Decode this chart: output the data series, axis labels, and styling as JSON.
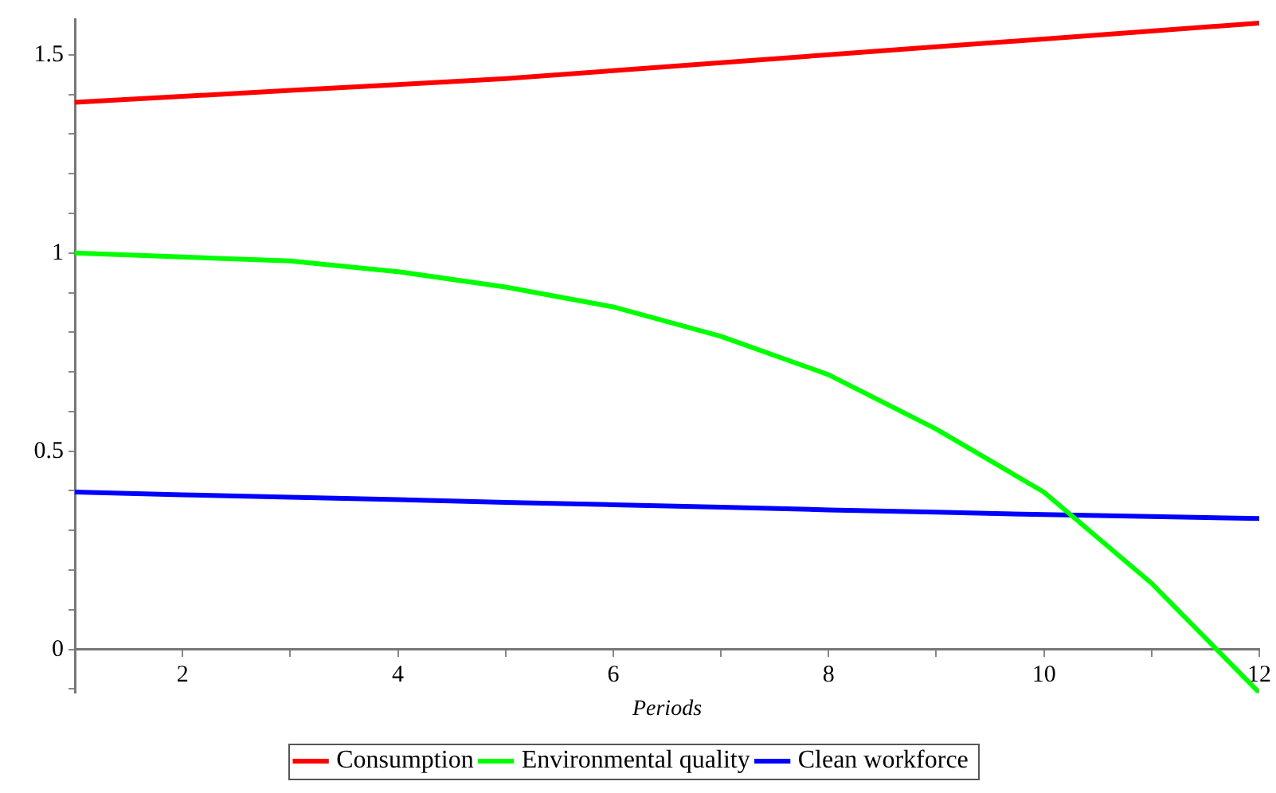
{
  "chart_data": {
    "type": "line",
    "xlabel": "Periods",
    "x": [
      1,
      2,
      3,
      4,
      5,
      6,
      7,
      8,
      9,
      10,
      11,
      12
    ],
    "series": [
      {
        "name": "Consumption",
        "color": "#ff0000",
        "values": [
          1.38,
          1.395,
          1.41,
          1.425,
          1.44,
          1.46,
          1.48,
          1.5,
          1.52,
          1.54,
          1.56,
          1.58
        ]
      },
      {
        "name": "Environmental quality",
        "color": "#00ff00",
        "values": [
          1.0,
          0.99,
          0.98,
          0.953,
          0.914,
          0.864,
          0.79,
          0.693,
          0.556,
          0.397,
          0.167,
          -0.109
        ]
      },
      {
        "name": "Clean workforce",
        "color": "#0000ff",
        "values": [
          0.397,
          0.39,
          0.384,
          0.378,
          0.371,
          0.365,
          0.359,
          0.352,
          0.346,
          0.34,
          0.335,
          0.33
        ]
      }
    ],
    "xlim": [
      1,
      12
    ],
    "xticks": [
      2,
      {
        "value": 3,
        "label": null
      },
      4,
      {
        "value": 5,
        "label": null
      },
      6,
      {
        "value": 7,
        "label": null
      },
      8,
      {
        "value": 9,
        "label": null
      },
      10,
      {
        "value": 11,
        "label": null
      },
      12
    ],
    "ylim": [
      -0.11,
      1.59
    ],
    "yticks": [
      {
        "value": -0.1,
        "label": null
      },
      0,
      {
        "value": 0.1,
        "label": null
      },
      {
        "value": 0.2,
        "label": null
      },
      {
        "value": 0.3,
        "label": null
      },
      {
        "value": 0.4,
        "label": null
      },
      0.5,
      {
        "value": 0.6,
        "label": null
      },
      {
        "value": 0.7,
        "label": null
      },
      {
        "value": 0.8,
        "label": null
      },
      {
        "value": 0.9,
        "label": null
      },
      1,
      {
        "value": 1.1,
        "label": null
      },
      {
        "value": 1.2,
        "label": null
      },
      {
        "value": 1.3,
        "label": null
      },
      {
        "value": 1.4,
        "label": null
      },
      1.5
    ],
    "grid": false,
    "legend": "bottom",
    "marker": "none",
    "line_style": "solid"
  }
}
